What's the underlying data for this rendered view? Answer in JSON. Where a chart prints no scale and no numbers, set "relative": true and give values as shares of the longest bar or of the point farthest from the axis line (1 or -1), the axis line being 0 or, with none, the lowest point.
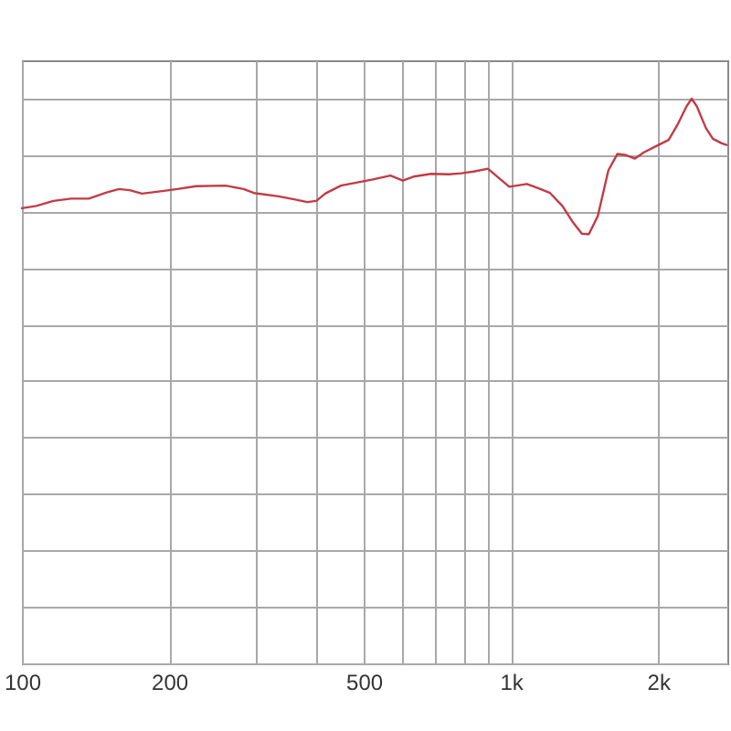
{
  "chart_data": {
    "type": "line",
    "relative": true,
    "log": "x",
    "grid": true,
    "color": "#c23b45",
    "xlim": [
      100,
      2770
    ],
    "xticks": [
      100,
      200,
      {
        "value": 300,
        "label": null
      },
      {
        "value": 400,
        "label": null
      },
      500,
      {
        "value": 600,
        "label": null
      },
      {
        "value": 700,
        "label": null
      },
      {
        "value": 800,
        "label": null
      },
      {
        "value": 900,
        "label": null
      },
      {
        "value": 1000,
        "label": "1k"
      },
      {
        "value": 2000,
        "label": "2k"
      }
    ],
    "x": [
      100,
      107,
      116,
      126,
      137,
      149,
      158,
      166,
      176,
      192,
      208,
      227,
      261,
      284,
      298,
      335,
      364,
      383,
      400,
      417,
      449,
      480,
      522,
      567,
      601,
      632,
      687,
      747,
      792,
      839,
      897,
      920,
      992,
      1078,
      1133,
      1202,
      1274,
      1339,
      1396,
      1443,
      1505,
      1582,
      1650,
      1720,
      1793,
      1870,
      1982,
      2101,
      2191,
      2284,
      2342,
      2401,
      2504,
      2588,
      2699,
      2760
    ],
    "values": [
      0.806,
      0.81,
      0.819,
      0.823,
      0.823,
      0.834,
      0.84,
      0.838,
      0.832,
      0.836,
      0.84,
      0.845,
      0.846,
      0.84,
      0.833,
      0.827,
      0.821,
      0.817,
      0.819,
      0.832,
      0.846,
      0.851,
      0.857,
      0.864,
      0.855,
      0.862,
      0.867,
      0.866,
      0.868,
      0.871,
      0.876,
      0.868,
      0.844,
      0.849,
      0.842,
      0.833,
      0.81,
      0.781,
      0.761,
      0.76,
      0.792,
      0.873,
      0.902,
      0.9,
      0.894,
      0.905,
      0.916,
      0.927,
      0.954,
      0.986,
      1.0,
      0.986,
      0.948,
      0.929,
      0.921,
      0.918
    ]
  }
}
